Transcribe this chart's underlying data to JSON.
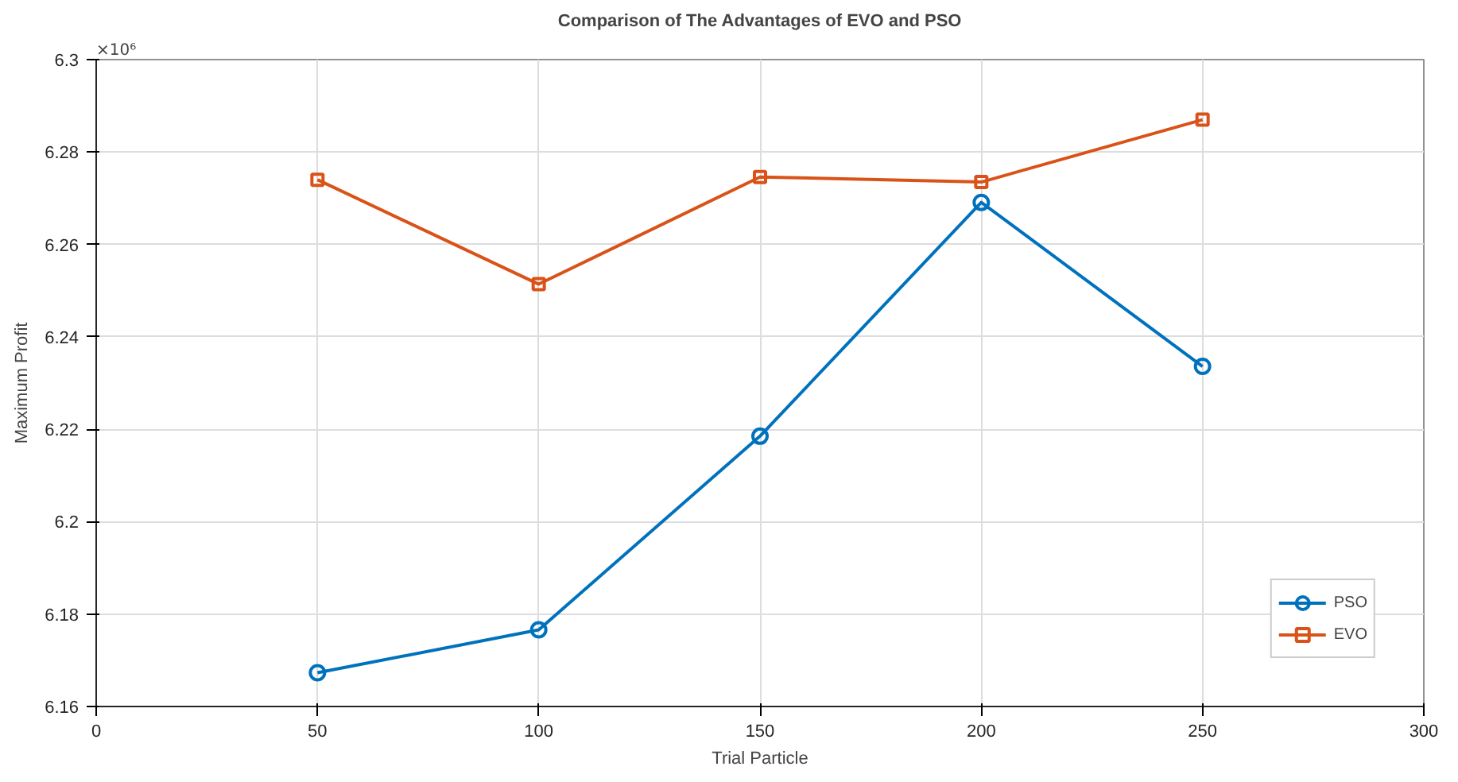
{
  "chart_data": {
    "type": "line",
    "title": "Comparison of The Advantages of EVO and PSO",
    "xlabel": "Trial Particle",
    "ylabel": "Maximum Profit",
    "annotations": [
      "×10⁶"
    ],
    "x": [
      50,
      100,
      150,
      200,
      250
    ],
    "series": [
      {
        "name": "PSO",
        "color": "#0072bd",
        "marker": "circle",
        "values": [
          6.1673,
          6.1766,
          6.2185,
          6.2691,
          6.2336
        ]
      },
      {
        "name": "EVO",
        "color": "#d95319",
        "marker": "square",
        "values": [
          6.274,
          6.2514,
          6.2746,
          6.2735,
          6.287
        ]
      }
    ],
    "xlim": [
      0,
      300
    ],
    "xticks": [
      0,
      50,
      100,
      150,
      200,
      250,
      300
    ],
    "ylim": [
      6.16,
      6.3
    ],
    "yticks": [
      6.16,
      6.18,
      6.2,
      6.22,
      6.24,
      6.26,
      6.28,
      6.3
    ],
    "grid": true,
    "legend": "bottom right",
    "line_style": "solid"
  }
}
